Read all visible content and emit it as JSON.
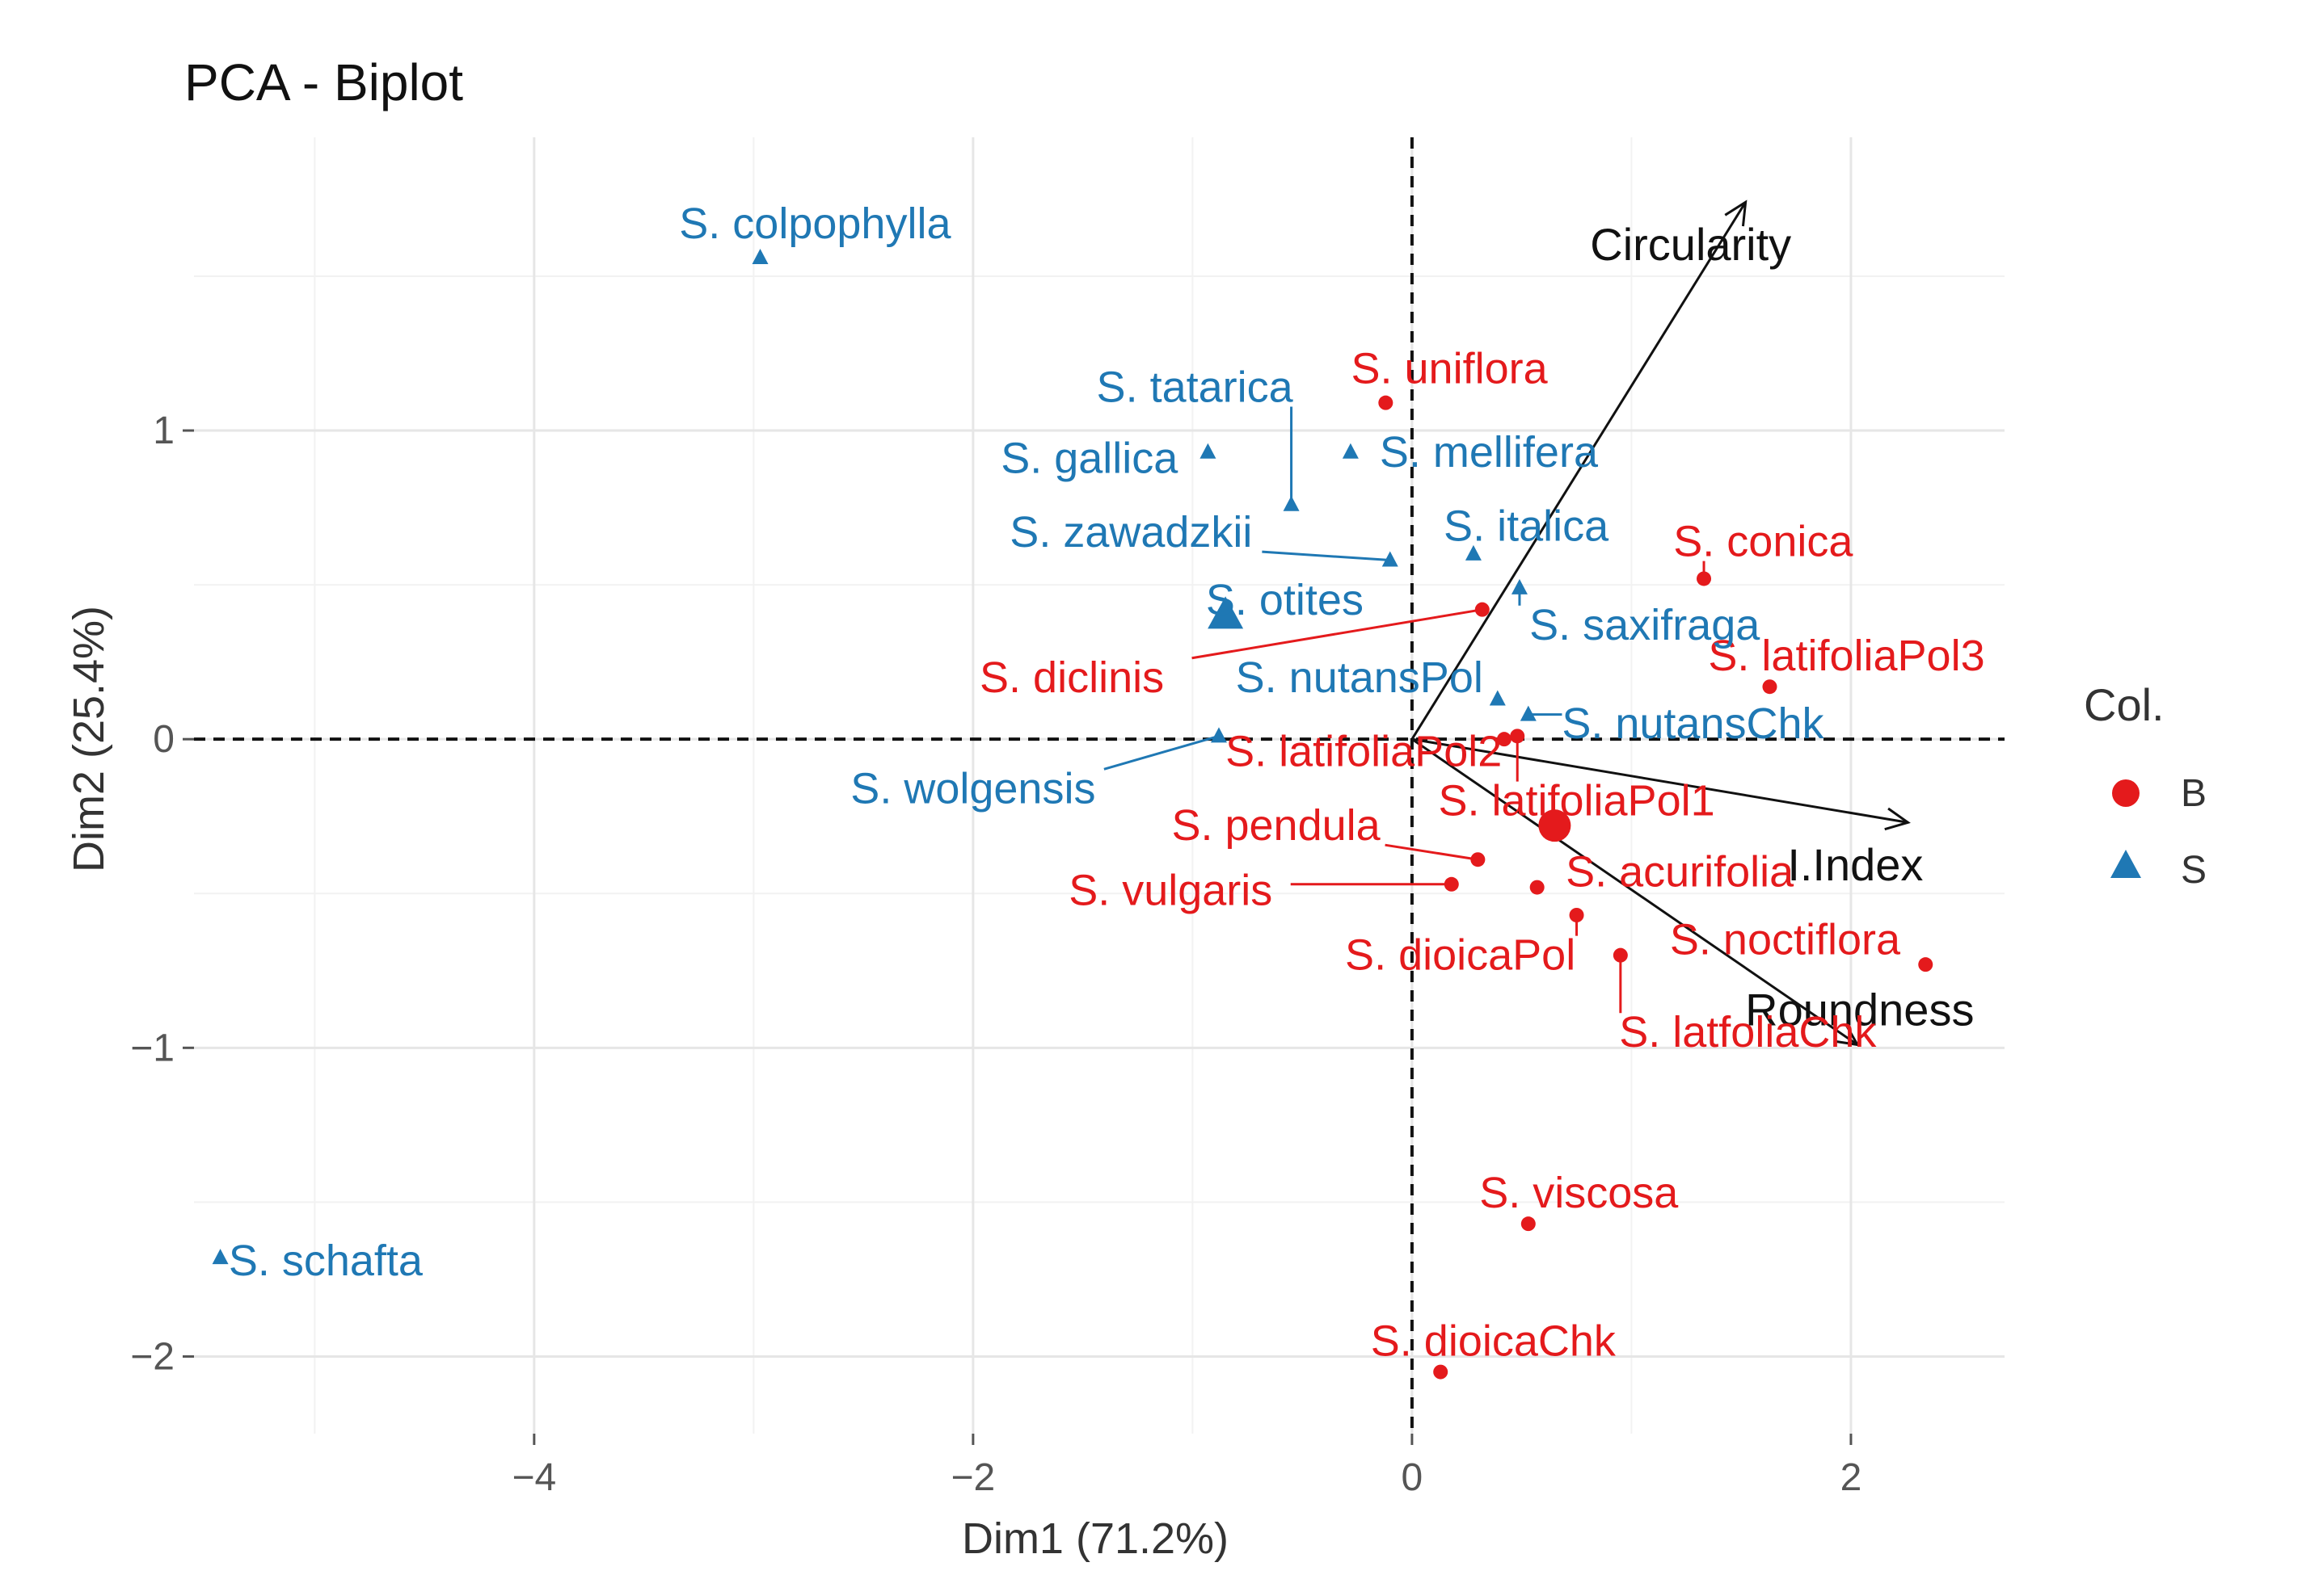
{
  "chart_data": {
    "type": "scatter",
    "subtype": "pca-biplot",
    "title": "PCA - Biplot",
    "xlabel": "Dim1 (71.2%)",
    "ylabel": "Dim2 (25.4%)",
    "xlim": [
      -5.55,
      2.7
    ],
    "ylim": [
      -2.25,
      1.95
    ],
    "xticks": [
      -4,
      -2,
      0,
      2
    ],
    "yticks": [
      1,
      0,
      -1,
      -2
    ],
    "xtick_labels": [
      "−4",
      "−2",
      "0",
      "2"
    ],
    "ytick_labels": [
      "1",
      "0",
      "−1",
      "−2"
    ],
    "grid": true,
    "legend": {
      "title": "Col.",
      "position": "right",
      "entries": [
        {
          "label": "B",
          "color": "#e41a1c",
          "shape": "circle"
        },
        {
          "label": "S",
          "color": "#1f78b4",
          "shape": "triangle"
        }
      ]
    },
    "group_centroids": [
      {
        "group": "B",
        "x": 0.65,
        "y": -0.28
      },
      {
        "group": "S",
        "x": -0.85,
        "y": 0.4
      }
    ],
    "series": [
      {
        "name": "B",
        "color": "#e41a1c",
        "shape": "circle",
        "points": [
          {
            "label": "S. uniflora",
            "x": -0.12,
            "y": 1.09,
            "lx": 0.17,
            "ly": 1.2
          },
          {
            "label": "S. conica",
            "x": 1.33,
            "y": 0.52,
            "lx": 1.6,
            "ly": 0.64
          },
          {
            "label": "S. latifoliaPol3",
            "x": 1.63,
            "y": 0.17,
            "lx": 1.98,
            "ly": 0.27
          },
          {
            "label": "S. diclinis",
            "x": 0.32,
            "y": 0.42,
            "lx": -1.55,
            "ly": 0.2
          },
          {
            "label": "S. latifoliaPol2",
            "x": 0.42,
            "y": 0.0,
            "lx": -0.22,
            "ly": -0.04
          },
          {
            "label": "S. latifoliaPol1",
            "x": 0.48,
            "y": 0.01,
            "lx": 0.75,
            "ly": -0.2
          },
          {
            "label": "S. pendula",
            "x": 0.3,
            "y": -0.39,
            "lx": -0.62,
            "ly": -0.28
          },
          {
            "label": "S. vulgaris",
            "x": 0.18,
            "y": -0.47,
            "lx": -1.1,
            "ly": -0.49
          },
          {
            "label": "S. acurifolia",
            "x": 0.57,
            "y": -0.48,
            "lx": 1.22,
            "ly": -0.43
          },
          {
            "label": "S. dioicaPol",
            "x": 0.75,
            "y": -0.57,
            "lx": 0.22,
            "ly": -0.7
          },
          {
            "label": "S. noctiflora",
            "x": 2.34,
            "y": -0.73,
            "lx": 1.7,
            "ly": -0.65
          },
          {
            "label": "S. latfoliaChk",
            "x": 0.95,
            "y": -0.7,
            "lx": 1.53,
            "ly": -0.95
          },
          {
            "label": "S. viscosa",
            "x": 0.53,
            "y": -1.57,
            "lx": 0.76,
            "ly": -1.47
          },
          {
            "label": "S. dioicaChk",
            "x": 0.13,
            "y": -2.05,
            "lx": 0.37,
            "ly": -1.95
          }
        ]
      },
      {
        "name": "S",
        "color": "#1f78b4",
        "shape": "triangle",
        "points": [
          {
            "label": "S. colpophylla",
            "x": -2.97,
            "y": 1.56,
            "lx": -2.72,
            "ly": 1.67
          },
          {
            "label": "S. tatarica",
            "x": -0.55,
            "y": 0.76,
            "lx": -0.99,
            "ly": 1.14
          },
          {
            "label": "S. gallica",
            "x": -0.93,
            "y": 0.93,
            "lx": -1.47,
            "ly": 0.91
          },
          {
            "label": "S. mellifera",
            "x": -0.28,
            "y": 0.93,
            "lx": 0.35,
            "ly": 0.93
          },
          {
            "label": "S. zawadzkii",
            "x": -0.1,
            "y": 0.58,
            "lx": -1.28,
            "ly": 0.67
          },
          {
            "label": "S. italica",
            "x": 0.28,
            "y": 0.6,
            "lx": 0.52,
            "ly": 0.69
          },
          {
            "label": "S. otites",
            "x": -0.85,
            "y": 0.4,
            "lx": -0.58,
            "ly": 0.45
          },
          {
            "label": "S. saxifraga",
            "x": 0.49,
            "y": 0.49,
            "lx": 1.06,
            "ly": 0.37
          },
          {
            "label": "S. nutansPol",
            "x": 0.39,
            "y": 0.13,
            "lx": -0.24,
            "ly": 0.2
          },
          {
            "label": "S. nutansChk",
            "x": 0.53,
            "y": 0.08,
            "lx": 1.28,
            "ly": 0.05
          },
          {
            "label": "S. wolgensis",
            "x": -0.88,
            "y": 0.01,
            "lx": -2.0,
            "ly": -0.16
          },
          {
            "label": "S. schafta",
            "x": -5.43,
            "y": -1.68,
            "lx": -4.95,
            "ly": -1.69
          }
        ]
      }
    ],
    "variables": [
      {
        "label": "Circularity",
        "x": 1.52,
        "y": 1.74,
        "lx": 1.27,
        "ly": 1.6
      },
      {
        "label": "I.Index",
        "x": 2.26,
        "y": -0.27,
        "lx": 2.02,
        "ly": -0.41
      },
      {
        "label": "Roundness",
        "x": 2.03,
        "y": -0.99,
        "lx": 2.04,
        "ly": -0.88
      }
    ]
  }
}
